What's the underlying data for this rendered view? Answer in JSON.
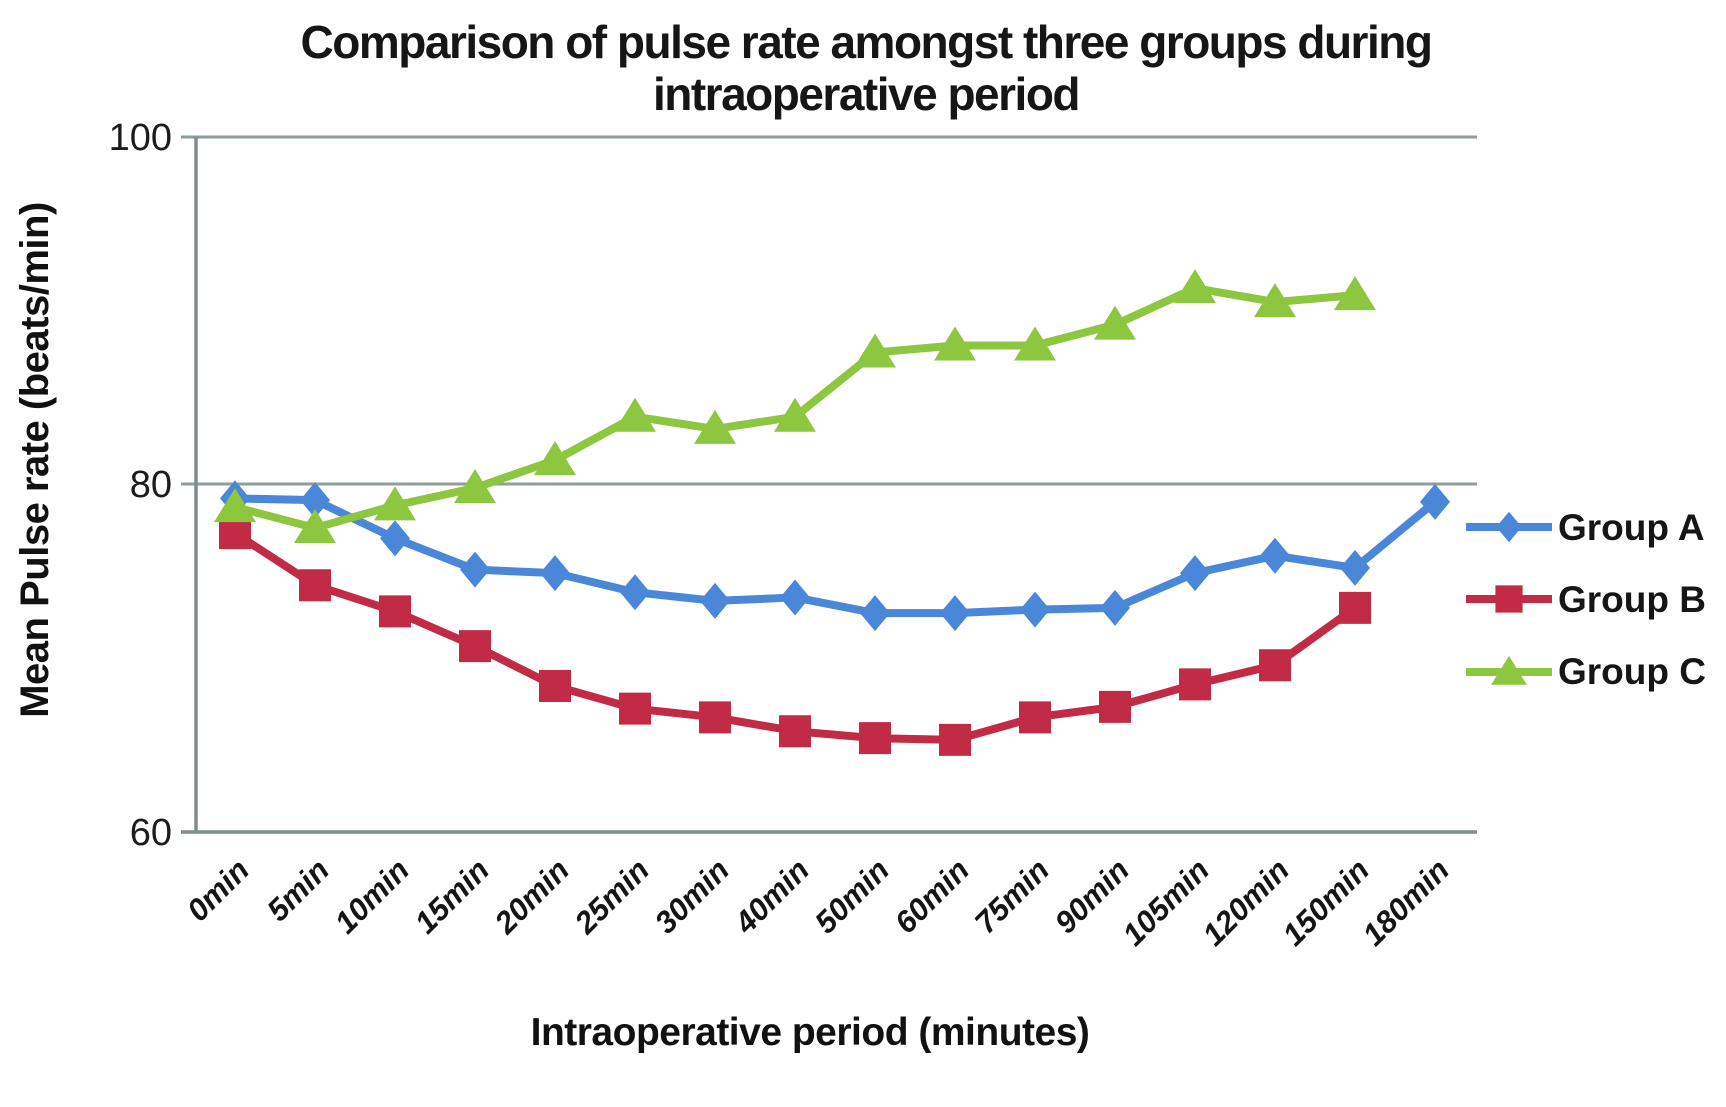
{
  "title_lines": [
    "Comparison of pulse rate amongst three groups during",
    "intraoperative period"
  ],
  "axes": {
    "y_title": "Mean  Pulse rate (beats/min)",
    "x_title": "Intraoperative period (minutes)",
    "ytick_labels": [
      "100",
      "80",
      "60"
    ]
  },
  "colors": {
    "axis": "#7e8d8d",
    "gridline": "#8f9d9d",
    "text": "#161616",
    "group_a": "#4a87d8",
    "group_b": "#c22b45",
    "group_c": "#8dc63f"
  },
  "chart_data": {
    "type": "line",
    "title": "Comparison of pulse rate amongst three groups during intraoperative period",
    "xlabel": "Intraoperative period (minutes)",
    "ylabel": "Mean  Pulse rate (beats/min)",
    "categories": [
      "0min",
      "5min",
      "10min",
      "15min",
      "20min",
      "25min",
      "30min",
      "40min",
      "50min",
      "60min",
      "75min",
      "90min",
      "105min",
      "120min",
      "150min",
      "180min"
    ],
    "series": [
      {
        "name": "Group A",
        "color": "#4a87d8",
        "marker": "diamond",
        "values": [
          79.2,
          79.1,
          76.9,
          75.1,
          74.9,
          73.8,
          73.3,
          73.5,
          72.6,
          72.6,
          72.8,
          72.9,
          74.9,
          75.9,
          75.2,
          79.0
        ]
      },
      {
        "name": "Group B",
        "color": "#c22b45",
        "marker": "square",
        "values": [
          77.2,
          74.2,
          72.7,
          70.7,
          68.4,
          67.1,
          66.6,
          65.8,
          65.4,
          65.3,
          66.6,
          67.2,
          68.5,
          69.6,
          72.9,
          null
        ]
      },
      {
        "name": "Group C",
        "color": "#8dc63f",
        "marker": "triangle",
        "values": [
          78.7,
          77.5,
          78.8,
          79.8,
          81.4,
          83.9,
          83.2,
          83.9,
          87.6,
          88.0,
          88.0,
          89.2,
          91.3,
          90.5,
          90.9,
          null
        ]
      }
    ],
    "ylim": [
      60,
      100
    ],
    "yticks": [
      60,
      80,
      100
    ],
    "grid": "horizontal",
    "legend_position": "right"
  }
}
